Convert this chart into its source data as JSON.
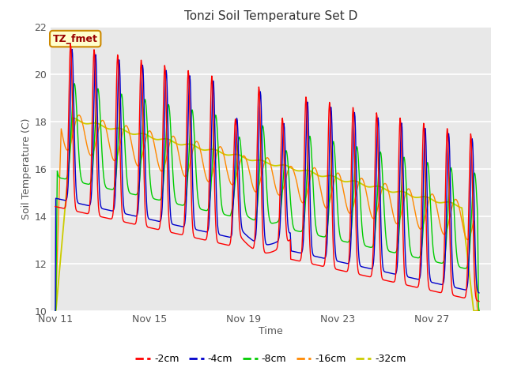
{
  "title": "Tonzi Soil Temperature Set D",
  "xlabel": "Time",
  "ylabel": "Soil Temperature (C)",
  "ylim": [
    10,
    22
  ],
  "yticks": [
    10,
    12,
    14,
    16,
    18,
    20,
    22
  ],
  "xtick_labels": [
    "Nov 11",
    "Nov 15",
    "Nov 19",
    "Nov 23",
    "Nov 27"
  ],
  "xtick_days": [
    0,
    4,
    8,
    12,
    16
  ],
  "legend_entries": [
    "-2cm",
    "-4cm",
    "-8cm",
    "-16cm",
    "-32cm"
  ],
  "line_colors": [
    "#ff0000",
    "#0000cc",
    "#00cc00",
    "#ff8800",
    "#cccc00"
  ],
  "bg_color": "#e8e8e8",
  "annotation_text": "TZ_fmet",
  "annotation_bg": "#ffffcc",
  "annotation_border": "#cc8800",
  "annotation_text_color": "#990000",
  "n_days": 18,
  "samples_per_day": 48
}
